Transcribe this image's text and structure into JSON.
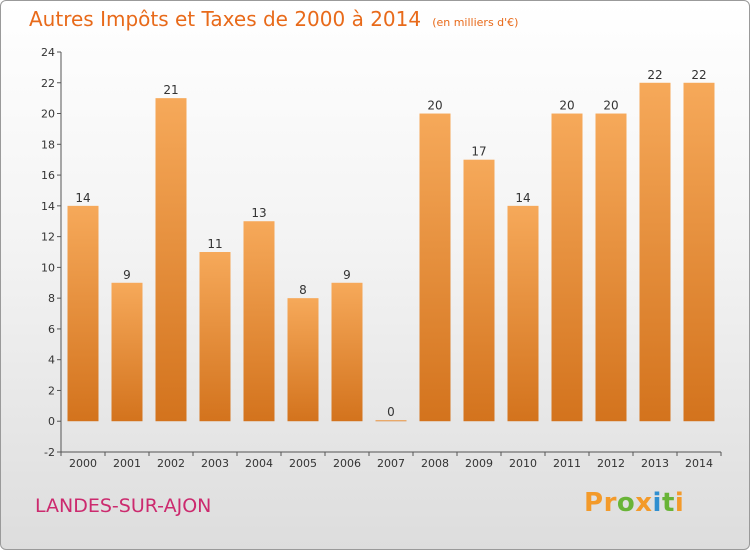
{
  "title": "Autres Impôts et Taxes de 2000 à 2014",
  "subtitle": "(en milliers d'€)",
  "commune": "LANDES-SUR-AJON",
  "brand": [
    "P",
    "r",
    "o",
    "x",
    "i",
    "t",
    "i"
  ],
  "colors": {
    "bar_light": "#f6a95a",
    "bar_dark": "#d3731d",
    "text": "#333333",
    "title": "#e86a1a",
    "commune": "#cc2a6e",
    "axis": "#555555"
  },
  "chart_data": {
    "type": "bar",
    "categories": [
      "2000",
      "2001",
      "2002",
      "2003",
      "2004",
      "2005",
      "2006",
      "2007",
      "2008",
      "2009",
      "2010",
      "2011",
      "2012",
      "2013",
      "2014"
    ],
    "values": [
      14,
      9,
      21,
      11,
      13,
      8,
      9,
      0,
      20,
      17,
      14,
      20,
      20,
      22,
      22
    ],
    "data_labels": [
      "14",
      "9",
      "21",
      "11",
      "13",
      "8",
      "9",
      "0",
      "20",
      "17",
      "14",
      "20",
      "20",
      "22",
      "22"
    ],
    "ylim": [
      -2,
      24
    ],
    "yticks": [
      -2,
      0,
      2,
      4,
      6,
      8,
      10,
      12,
      14,
      16,
      18,
      20,
      22,
      24
    ],
    "xlabel": "",
    "ylabel": "",
    "grid": false
  }
}
